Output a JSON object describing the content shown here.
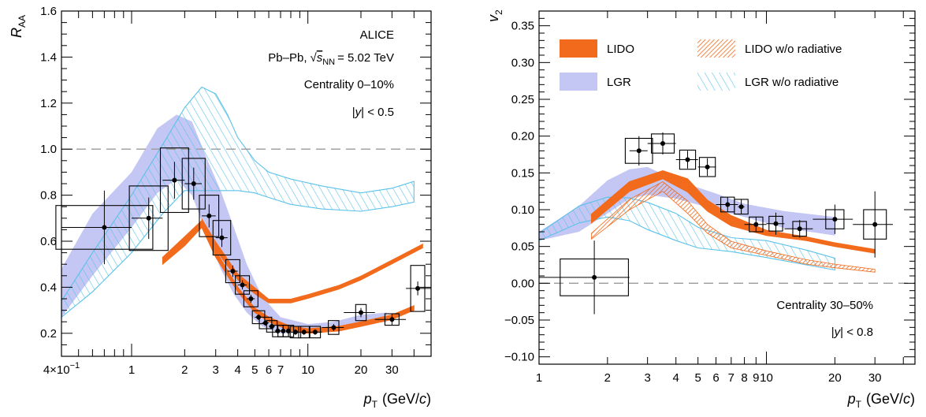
{
  "colors": {
    "lido": "#f26a1b",
    "lgr": "#c4c6f3",
    "lgr_line": "#5bc2e9",
    "data": "#000000",
    "reference": "#9a9a9a"
  },
  "legend": {
    "lido": "LIDO",
    "lido_norad": "LIDO w/o radiative",
    "lgr": "LGR",
    "lgr_norad": "LGR w/o radiative"
  },
  "chart_data": [
    {
      "type": "scatter",
      "title": "ALICE",
      "annotations": {
        "experiment": "ALICE",
        "system_prefix": "Pb–Pb,",
        "system_sqrt": "s",
        "system_sub": "NN",
        "system_value": "= 5.02 TeV",
        "centrality": "Centrality 0–10%",
        "rapidity_prefix": "|",
        "rapidity_var": "y",
        "rapidity_suffix": "| < 0.5"
      },
      "xlabel_main": "p",
      "xlabel_sub": "T",
      "xlabel_unit_open": "(GeV/",
      "xlabel_unit_c": "c",
      "xlabel_unit_close": ")",
      "ylabel_main": "R",
      "ylabel_sub": "AA",
      "xscale": "log",
      "xlim": [
        0.4,
        50
      ],
      "ylim": [
        0.1,
        1.6
      ],
      "xticks": [
        {
          "v": 0.4,
          "label": "4×10",
          "exp": "−1"
        },
        {
          "v": 1,
          "label": "1"
        },
        {
          "v": 2,
          "label": "2"
        },
        {
          "v": 3,
          "label": "3"
        },
        {
          "v": 4,
          "label": "4"
        },
        {
          "v": 5,
          "label": "5"
        },
        {
          "v": 6,
          "label": "6"
        },
        {
          "v": 7,
          "label": "7"
        },
        {
          "v": 10,
          "label": "10"
        },
        {
          "v": 20,
          "label": "20"
        },
        {
          "v": 30,
          "label": "30"
        }
      ],
      "yticks": [
        {
          "v": 0.2,
          "label": "0.2"
        },
        {
          "v": 0.4,
          "label": "0.4"
        },
        {
          "v": 0.6,
          "label": "0.6"
        },
        {
          "v": 0.8,
          "label": "0.8"
        },
        {
          "v": 1.0,
          "label": "1.0"
        },
        {
          "v": 1.2,
          "label": "1.2"
        },
        {
          "v": 1.4,
          "label": "1.4"
        },
        {
          "v": 1.6,
          "label": "1.6"
        }
      ],
      "reference_line": 1.0,
      "data": [
        {
          "x": 0.7,
          "y": 0.66,
          "xl": 0.4,
          "xh": 1.0,
          "stat": 0.16,
          "sys": 0.095,
          "bw": 0.55
        },
        {
          "x": 1.25,
          "y": 0.7,
          "xl": 1.0,
          "xh": 1.5,
          "stat": 0.09,
          "sys": 0.14,
          "bw": 0.22
        },
        {
          "x": 1.75,
          "y": 0.865,
          "xl": 1.5,
          "xh": 2.0,
          "stat": 0.08,
          "sys": 0.14,
          "bw": 0.16
        },
        {
          "x": 2.25,
          "y": 0.85,
          "xl": 2.0,
          "xh": 2.5,
          "stat": 0.07,
          "sys": 0.11,
          "bw": 0.13
        },
        {
          "x": 2.75,
          "y": 0.71,
          "xl": 2.5,
          "xh": 3.0,
          "stat": 0.05,
          "sys": 0.09,
          "bw": 0.11
        },
        {
          "x": 3.25,
          "y": 0.615,
          "xl": 3.0,
          "xh": 3.5,
          "stat": 0.04,
          "sys": 0.075,
          "bw": 0.1
        },
        {
          "x": 3.75,
          "y": 0.47,
          "xl": 3.5,
          "xh": 4.0,
          "stat": 0.025,
          "sys": 0.05,
          "bw": 0.08
        },
        {
          "x": 4.25,
          "y": 0.41,
          "xl": 4.0,
          "xh": 4.5,
          "stat": 0.02,
          "sys": 0.04,
          "bw": 0.08
        },
        {
          "x": 4.75,
          "y": 0.35,
          "xl": 4.5,
          "xh": 5.0,
          "stat": 0.017,
          "sys": 0.035,
          "bw": 0.08
        },
        {
          "x": 5.25,
          "y": 0.27,
          "xl": 5.0,
          "xh": 5.5,
          "stat": 0.012,
          "sys": 0.028,
          "bw": 0.07
        },
        {
          "x": 5.75,
          "y": 0.245,
          "xl": 5.5,
          "xh": 6.0,
          "stat": 0.012,
          "sys": 0.025,
          "bw": 0.07
        },
        {
          "x": 6.25,
          "y": 0.23,
          "xl": 6.0,
          "xh": 6.5,
          "stat": 0.012,
          "sys": 0.025,
          "bw": 0.06
        },
        {
          "x": 6.75,
          "y": 0.21,
          "xl": 6.5,
          "xh": 7.0,
          "stat": 0.012,
          "sys": 0.025,
          "bw": 0.06
        },
        {
          "x": 7.25,
          "y": 0.21,
          "xl": 7.0,
          "xh": 7.5,
          "stat": 0.012,
          "sys": 0.025,
          "bw": 0.06
        },
        {
          "x": 7.75,
          "y": 0.21,
          "xl": 7.5,
          "xh": 8.0,
          "stat": 0.012,
          "sys": 0.025,
          "bw": 0.06
        },
        {
          "x": 8.5,
          "y": 0.205,
          "xl": 8.0,
          "xh": 9.0,
          "stat": 0.012,
          "sys": 0.025,
          "bw": 0.06
        },
        {
          "x": 9.5,
          "y": 0.205,
          "xl": 9.0,
          "xh": 10.0,
          "stat": 0.012,
          "sys": 0.025,
          "bw": 0.06
        },
        {
          "x": 11.0,
          "y": 0.205,
          "xl": 10.0,
          "xh": 12.0,
          "stat": 0.012,
          "sys": 0.025,
          "bw": 0.06
        },
        {
          "x": 14.0,
          "y": 0.225,
          "xl": 12.0,
          "xh": 16.0,
          "stat": 0.015,
          "sys": 0.03,
          "bw": 0.06
        },
        {
          "x": 20.0,
          "y": 0.29,
          "xl": 16.0,
          "xh": 24.0,
          "stat": 0.02,
          "sys": 0.035,
          "bw": 0.06
        },
        {
          "x": 30.0,
          "y": 0.26,
          "xl": 24.0,
          "xh": 36.0,
          "stat": 0.025,
          "sys": 0.025,
          "bw": 0.08
        },
        {
          "x": 42.0,
          "y": 0.395,
          "xl": 36.0,
          "xh": 50.0,
          "stat": 0.03,
          "sys": 0.1,
          "bw": 0.08
        }
      ],
      "lgr_band": [
        {
          "x": 0.4,
          "lo": 0.27,
          "hi": 0.48
        },
        {
          "x": 0.6,
          "lo": 0.45,
          "hi": 0.72
        },
        {
          "x": 1.0,
          "lo": 0.66,
          "hi": 0.9
        },
        {
          "x": 1.4,
          "lo": 0.81,
          "hi": 1.09
        },
        {
          "x": 1.8,
          "lo": 0.87,
          "hi": 1.15
        },
        {
          "x": 2.2,
          "lo": 0.8,
          "hi": 1.12
        },
        {
          "x": 2.7,
          "lo": 0.62,
          "hi": 0.95
        },
        {
          "x": 3.2,
          "lo": 0.48,
          "hi": 0.82
        },
        {
          "x": 3.8,
          "lo": 0.37,
          "hi": 0.66
        },
        {
          "x": 4.5,
          "lo": 0.29,
          "hi": 0.5
        },
        {
          "x": 5.5,
          "lo": 0.23,
          "hi": 0.36
        },
        {
          "x": 7.0,
          "lo": 0.2,
          "hi": 0.27
        },
        {
          "x": 10.0,
          "lo": 0.2,
          "hi": 0.24
        },
        {
          "x": 14.0,
          "lo": 0.22,
          "hi": 0.25
        },
        {
          "x": 20.0,
          "lo": 0.24,
          "hi": 0.28
        },
        {
          "x": 28.0,
          "lo": 0.25,
          "hi": 0.29
        }
      ],
      "lgr_norad": [
        {
          "x": 0.4,
          "lo": 0.27,
          "hi": 0.34
        },
        {
          "x": 0.6,
          "lo": 0.38,
          "hi": 0.55
        },
        {
          "x": 1.0,
          "lo": 0.55,
          "hi": 0.8
        },
        {
          "x": 1.5,
          "lo": 0.72,
          "hi": 1.02
        },
        {
          "x": 2.0,
          "lo": 0.82,
          "hi": 1.18
        },
        {
          "x": 2.5,
          "lo": 0.82,
          "hi": 1.27
        },
        {
          "x": 3.0,
          "lo": 0.82,
          "hi": 1.24
        },
        {
          "x": 3.5,
          "lo": 0.82,
          "hi": 1.15
        },
        {
          "x": 4.0,
          "lo": 0.82,
          "hi": 1.05
        },
        {
          "x": 5.0,
          "lo": 0.81,
          "hi": 0.95
        },
        {
          "x": 6.0,
          "lo": 0.79,
          "hi": 0.9
        },
        {
          "x": 8.0,
          "lo": 0.76,
          "hi": 0.87
        },
        {
          "x": 12.0,
          "lo": 0.74,
          "hi": 0.84
        },
        {
          "x": 20.0,
          "lo": 0.73,
          "hi": 0.81
        },
        {
          "x": 30.0,
          "lo": 0.75,
          "hi": 0.83
        },
        {
          "x": 40.0,
          "lo": 0.77,
          "hi": 0.86
        }
      ],
      "lido": [
        {
          "x": 1.5,
          "lo": 0.5,
          "hi": 0.53
        },
        {
          "x": 2.0,
          "lo": 0.58,
          "hi": 0.62
        },
        {
          "x": 2.5,
          "lo": 0.66,
          "hi": 0.69
        },
        {
          "x": 3.0,
          "lo": 0.53,
          "hi": 0.56
        },
        {
          "x": 4.0,
          "lo": 0.38,
          "hi": 0.4
        },
        {
          "x": 5.0,
          "lo": 0.29,
          "hi": 0.31
        },
        {
          "x": 6.0,
          "lo": 0.25,
          "hi": 0.27
        },
        {
          "x": 8.0,
          "lo": 0.21,
          "hi": 0.23
        },
        {
          "x": 10.0,
          "lo": 0.2,
          "hi": 0.22
        },
        {
          "x": 15.0,
          "lo": 0.21,
          "hi": 0.23
        },
        {
          "x": 20.0,
          "lo": 0.23,
          "hi": 0.25
        },
        {
          "x": 30.0,
          "lo": 0.26,
          "hi": 0.28
        },
        {
          "x": 40.0,
          "lo": 0.3,
          "hi": 0.32
        }
      ],
      "lido_norad": [
        {
          "x": 2.5,
          "lo": 0.66,
          "hi": 0.7
        },
        {
          "x": 3.0,
          "lo": 0.56,
          "hi": 0.6
        },
        {
          "x": 4.0,
          "lo": 0.43,
          "hi": 0.46
        },
        {
          "x": 5.0,
          "lo": 0.37,
          "hi": 0.4
        },
        {
          "x": 6.0,
          "lo": 0.33,
          "hi": 0.35
        },
        {
          "x": 8.0,
          "lo": 0.33,
          "hi": 0.35
        },
        {
          "x": 10.0,
          "lo": 0.35,
          "hi": 0.37
        },
        {
          "x": 15.0,
          "lo": 0.39,
          "hi": 0.41
        },
        {
          "x": 20.0,
          "lo": 0.43,
          "hi": 0.45
        },
        {
          "x": 30.0,
          "lo": 0.5,
          "hi": 0.52
        },
        {
          "x": 45.0,
          "lo": 0.57,
          "hi": 0.59
        }
      ]
    },
    {
      "type": "scatter",
      "annotations": {
        "centrality": "Centrality 30–50%",
        "rapidity_prefix": "|",
        "rapidity_var": "y",
        "rapidity_suffix": "| < 0.8"
      },
      "xlabel_main": "p",
      "xlabel_sub": "T",
      "xlabel_unit_open": "(GeV/",
      "xlabel_unit_c": "c",
      "xlabel_unit_close": ")",
      "ylabel_main": "v",
      "ylabel_sub": "2",
      "xscale": "log",
      "xlim": [
        1,
        45
      ],
      "ylim": [
        -0.11,
        0.37
      ],
      "xticks": [
        {
          "v": 1,
          "label": "1"
        },
        {
          "v": 2,
          "label": "2"
        },
        {
          "v": 3,
          "label": "3"
        },
        {
          "v": 4,
          "label": "4"
        },
        {
          "v": 5,
          "label": "5"
        },
        {
          "v": 6,
          "label": "6"
        },
        {
          "v": 7,
          "label": "7"
        },
        {
          "v": 8,
          "label": "8"
        },
        {
          "v": 9,
          "label": "9"
        },
        {
          "v": 10,
          "label": "10"
        },
        {
          "v": 20,
          "label": "20"
        },
        {
          "v": 30,
          "label": "30"
        }
      ],
      "yticks": [
        {
          "v": -0.1,
          "label": "−0.10"
        },
        {
          "v": -0.05,
          "label": "−0.05"
        },
        {
          "v": 0.0,
          "label": "0.00"
        },
        {
          "v": 0.05,
          "label": "0.05"
        },
        {
          "v": 0.1,
          "label": "0.10"
        },
        {
          "v": 0.15,
          "label": "0.15"
        },
        {
          "v": 0.2,
          "label": "0.20"
        },
        {
          "v": 0.25,
          "label": "0.25"
        },
        {
          "v": 0.3,
          "label": "0.30"
        },
        {
          "v": 0.35,
          "label": "0.35"
        }
      ],
      "reference_line": 0.0,
      "data": [
        {
          "x": 1.75,
          "y": 0.008,
          "xl": 1.0,
          "xh": 2.5,
          "stat": 0.05,
          "sys": 0.025,
          "bw": 0.3
        },
        {
          "x": 2.75,
          "y": 0.18,
          "xl": 2.5,
          "xh": 3.0,
          "stat": 0.02,
          "sys": 0.017,
          "bw": 0.12
        },
        {
          "x": 3.5,
          "y": 0.19,
          "xl": 3.0,
          "xh": 4.0,
          "stat": 0.015,
          "sys": 0.013,
          "bw": 0.1
        },
        {
          "x": 4.5,
          "y": 0.168,
          "xl": 4.0,
          "xh": 5.0,
          "stat": 0.012,
          "sys": 0.013,
          "bw": 0.07
        },
        {
          "x": 5.5,
          "y": 0.158,
          "xl": 5.0,
          "xh": 6.0,
          "stat": 0.012,
          "sys": 0.013,
          "bw": 0.07
        },
        {
          "x": 6.75,
          "y": 0.107,
          "xl": 6.0,
          "xh": 7.5,
          "stat": 0.01,
          "sys": 0.01,
          "bw": 0.06
        },
        {
          "x": 7.75,
          "y": 0.104,
          "xl": 7.5,
          "xh": 8.0,
          "stat": 0.01,
          "sys": 0.01,
          "bw": 0.06
        },
        {
          "x": 9.0,
          "y": 0.08,
          "xl": 8.0,
          "xh": 10.0,
          "stat": 0.01,
          "sys": 0.01,
          "bw": 0.06
        },
        {
          "x": 11.0,
          "y": 0.081,
          "xl": 10.0,
          "xh": 12.0,
          "stat": 0.015,
          "sys": 0.01,
          "bw": 0.06
        },
        {
          "x": 14.0,
          "y": 0.074,
          "xl": 12.0,
          "xh": 16.0,
          "stat": 0.012,
          "sys": 0.01,
          "bw": 0.06
        },
        {
          "x": 20.0,
          "y": 0.087,
          "xl": 16.0,
          "xh": 24.0,
          "stat": 0.02,
          "sys": 0.013,
          "bw": 0.08
        },
        {
          "x": 30.0,
          "y": 0.08,
          "xl": 24.0,
          "xh": 36.0,
          "stat": 0.045,
          "sys": 0.02,
          "bw": 0.1
        }
      ],
      "lgr_band": [
        {
          "x": 1.0,
          "lo": 0.058,
          "hi": 0.07
        },
        {
          "x": 1.5,
          "lo": 0.07,
          "hi": 0.105
        },
        {
          "x": 2.0,
          "lo": 0.095,
          "hi": 0.14
        },
        {
          "x": 2.5,
          "lo": 0.115,
          "hi": 0.155
        },
        {
          "x": 3.0,
          "lo": 0.12,
          "hi": 0.158
        },
        {
          "x": 4.0,
          "lo": 0.115,
          "hi": 0.14
        },
        {
          "x": 6.0,
          "lo": 0.1,
          "hi": 0.122
        },
        {
          "x": 8.0,
          "lo": 0.09,
          "hi": 0.108
        },
        {
          "x": 12.0,
          "lo": 0.075,
          "hi": 0.098
        },
        {
          "x": 20.0,
          "lo": 0.065,
          "hi": 0.09
        }
      ],
      "lgr_norad": [
        {
          "x": 1.0,
          "lo": 0.058,
          "hi": 0.068
        },
        {
          "x": 1.5,
          "lo": 0.082,
          "hi": 0.105
        },
        {
          "x": 2.0,
          "lo": 0.09,
          "hi": 0.117
        },
        {
          "x": 2.5,
          "lo": 0.085,
          "hi": 0.116
        },
        {
          "x": 3.0,
          "lo": 0.073,
          "hi": 0.11
        },
        {
          "x": 4.0,
          "lo": 0.058,
          "hi": 0.095
        },
        {
          "x": 5.0,
          "lo": 0.048,
          "hi": 0.076
        },
        {
          "x": 7.0,
          "lo": 0.043,
          "hi": 0.062
        },
        {
          "x": 10.0,
          "lo": 0.035,
          "hi": 0.058
        },
        {
          "x": 15.0,
          "lo": 0.025,
          "hi": 0.045
        },
        {
          "x": 20.0,
          "lo": 0.018,
          "hi": 0.034
        }
      ],
      "lido": [
        {
          "x": 1.7,
          "lo": 0.082,
          "hi": 0.094
        },
        {
          "x": 2.5,
          "lo": 0.125,
          "hi": 0.138
        },
        {
          "x": 3.5,
          "lo": 0.142,
          "hi": 0.153
        },
        {
          "x": 4.5,
          "lo": 0.124,
          "hi": 0.142
        },
        {
          "x": 5.5,
          "lo": 0.098,
          "hi": 0.113
        },
        {
          "x": 7.0,
          "lo": 0.078,
          "hi": 0.092
        },
        {
          "x": 10.0,
          "lo": 0.065,
          "hi": 0.072
        },
        {
          "x": 15.0,
          "lo": 0.058,
          "hi": 0.063
        },
        {
          "x": 20.0,
          "lo": 0.05,
          "hi": 0.055
        },
        {
          "x": 30.0,
          "lo": 0.041,
          "hi": 0.046
        }
      ],
      "lido_norad": [
        {
          "x": 1.7,
          "lo": 0.06,
          "hi": 0.068
        },
        {
          "x": 2.5,
          "lo": 0.1,
          "hi": 0.114
        },
        {
          "x": 3.5,
          "lo": 0.125,
          "hi": 0.138
        },
        {
          "x": 4.5,
          "lo": 0.095,
          "hi": 0.112
        },
        {
          "x": 5.5,
          "lo": 0.068,
          "hi": 0.08
        },
        {
          "x": 7.0,
          "lo": 0.048,
          "hi": 0.057
        },
        {
          "x": 10.0,
          "lo": 0.038,
          "hi": 0.044
        },
        {
          "x": 15.0,
          "lo": 0.026,
          "hi": 0.032
        },
        {
          "x": 20.0,
          "lo": 0.021,
          "hi": 0.026
        },
        {
          "x": 30.0,
          "lo": 0.015,
          "hi": 0.019
        }
      ]
    }
  ]
}
